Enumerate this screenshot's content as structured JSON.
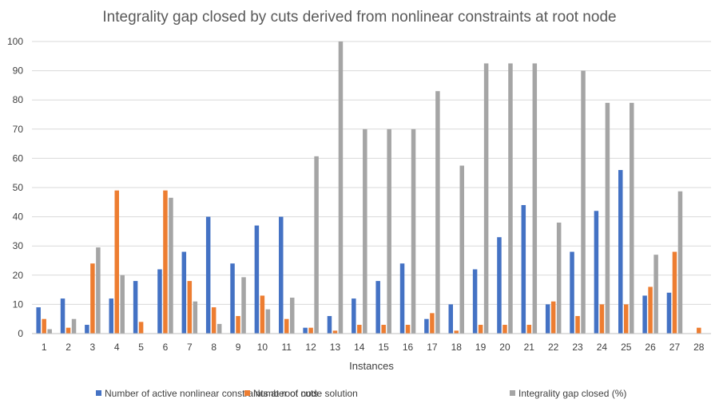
{
  "colors": {
    "series": [
      "#4472C4",
      "#ED7D31",
      "#A5A5A5"
    ],
    "grid": "#D9D9D9",
    "axis": "#BFBFBF",
    "text": "#404040",
    "title": "#595959"
  },
  "chart_data": {
    "type": "bar",
    "title": "Integrality gap closed by cuts derived from nonlinear constraints at root node",
    "xlabel": "Instances",
    "ylabel": "",
    "ylim": [
      0,
      100
    ],
    "yticks": [
      0,
      10,
      20,
      30,
      40,
      50,
      60,
      70,
      80,
      90,
      100
    ],
    "grid": true,
    "legend_position": "bottom",
    "categories": [
      "1",
      "2",
      "3",
      "4",
      "5",
      "6",
      "7",
      "8",
      "9",
      "10",
      "11",
      "12",
      "13",
      "14",
      "15",
      "16",
      "17",
      "18",
      "19",
      "20",
      "21",
      "22",
      "23",
      "24",
      "25",
      "26",
      "27",
      "28"
    ],
    "series": [
      {
        "name": "Number of active nonlinear constraints at root node solution",
        "values": [
          9,
          12,
          3,
          12,
          18,
          22,
          28,
          40,
          24,
          37,
          40,
          2,
          6,
          12,
          18,
          24,
          5,
          10,
          22,
          33,
          44,
          10,
          28,
          42,
          56,
          13,
          14,
          0
        ]
      },
      {
        "name": "Number of cuts",
        "values": [
          5,
          2,
          24,
          49,
          4,
          49,
          18,
          9,
          6,
          13,
          5,
          2,
          1,
          3,
          3,
          3,
          7,
          1,
          3,
          3,
          3,
          11,
          6,
          10,
          10,
          16,
          28,
          2
        ]
      },
      {
        "name": "Integrality gap closed (%)",
        "values": [
          1.5,
          5,
          29.5,
          20,
          0,
          46.5,
          11,
          3.3,
          19.3,
          8.3,
          12.3,
          60.7,
          100,
          70,
          70,
          70,
          83,
          57.5,
          92.5,
          92.5,
          92.5,
          38,
          90,
          79,
          79,
          27,
          48.7,
          0
        ]
      }
    ]
  }
}
